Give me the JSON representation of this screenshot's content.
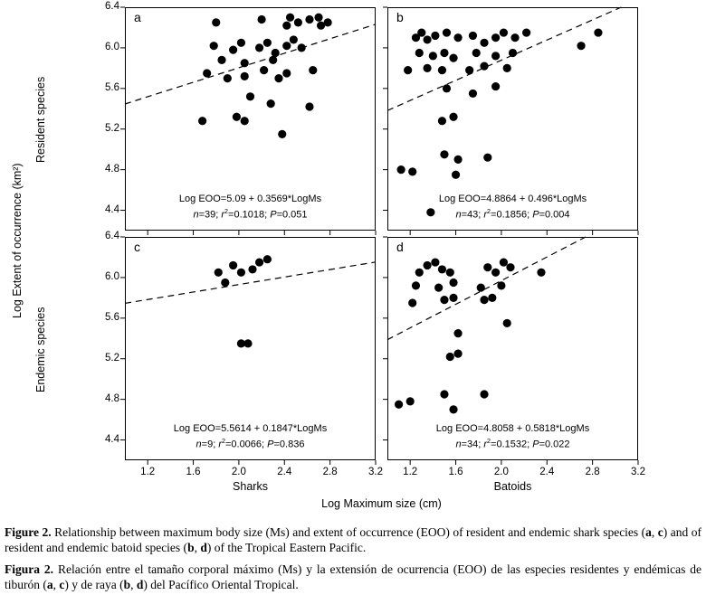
{
  "chart_data": {
    "type": "scatter",
    "xlabel": "Log Maximum size (cm)",
    "ylabel": "Log Extent of occurrence (km²)",
    "row_labels": [
      "Resident species",
      "Endemic species"
    ],
    "col_labels": [
      "Sharks",
      "Batoids"
    ],
    "xlim": [
      1.0,
      3.2
    ],
    "ylim": [
      4.2,
      6.4
    ],
    "x_ticks": [
      1.2,
      1.6,
      2.0,
      2.4,
      2.8,
      3.2
    ],
    "y_ticks": [
      4.4,
      4.8,
      5.2,
      5.6,
      6.0,
      6.4
    ],
    "grid": false,
    "legend": "none",
    "marker": "filled-circle",
    "line_style": "dashed",
    "colors": {
      "point": "#000000",
      "line": "#000000",
      "text": "#000000",
      "background": "#ffffff"
    },
    "stats_labels": {
      "n": "n",
      "r": "r",
      "r_sup": "2",
      "p": "P"
    },
    "panels": [
      {
        "id": "a",
        "row_label": "Resident species",
        "col_label": "Sharks",
        "equation": "Log EOO=5.09 + 0.3569*LogMs",
        "fit": {
          "intercept": 5.09,
          "slope": 0.3569
        },
        "n": "39",
        "r2": "0.1018",
        "P": "0.051",
        "points": [
          [
            1.8,
            6.25
          ],
          [
            2.2,
            6.28
          ],
          [
            2.42,
            6.22
          ],
          [
            2.45,
            6.3
          ],
          [
            2.52,
            6.25
          ],
          [
            2.62,
            6.28
          ],
          [
            2.7,
            6.3
          ],
          [
            2.72,
            6.22
          ],
          [
            2.78,
            6.25
          ],
          [
            1.78,
            6.02
          ],
          [
            1.95,
            5.98
          ],
          [
            2.02,
            6.05
          ],
          [
            2.18,
            6.0
          ],
          [
            2.25,
            6.05
          ],
          [
            2.32,
            5.95
          ],
          [
            2.42,
            6.02
          ],
          [
            2.48,
            6.08
          ],
          [
            2.55,
            6.0
          ],
          [
            1.85,
            5.88
          ],
          [
            2.05,
            5.85
          ],
          [
            2.3,
            5.88
          ],
          [
            1.72,
            5.75
          ],
          [
            1.9,
            5.7
          ],
          [
            2.05,
            5.72
          ],
          [
            2.22,
            5.78
          ],
          [
            2.35,
            5.7
          ],
          [
            2.42,
            5.75
          ],
          [
            2.65,
            5.78
          ],
          [
            2.1,
            5.52
          ],
          [
            2.28,
            5.45
          ],
          [
            2.62,
            5.42
          ],
          [
            1.68,
            5.28
          ],
          [
            1.98,
            5.32
          ],
          [
            2.05,
            5.28
          ],
          [
            2.38,
            5.15
          ]
        ]
      },
      {
        "id": "b",
        "row_label": "Resident species",
        "col_label": "Batoids",
        "equation": "Log EOO=4.8864 + 0.496*LogMs",
        "fit": {
          "intercept": 4.8864,
          "slope": 0.496
        },
        "n": "43",
        "r2": "0.1856",
        "P": "0.004",
        "points": [
          [
            1.25,
            6.1
          ],
          [
            1.3,
            6.15
          ],
          [
            1.35,
            6.08
          ],
          [
            1.42,
            6.12
          ],
          [
            1.52,
            6.15
          ],
          [
            1.62,
            6.1
          ],
          [
            1.75,
            6.12
          ],
          [
            1.85,
            6.05
          ],
          [
            1.95,
            6.1
          ],
          [
            2.02,
            6.15
          ],
          [
            2.12,
            6.1
          ],
          [
            2.22,
            6.15
          ],
          [
            2.85,
            6.15
          ],
          [
            1.28,
            5.95
          ],
          [
            1.4,
            5.92
          ],
          [
            1.5,
            5.95
          ],
          [
            1.58,
            5.9
          ],
          [
            1.78,
            5.95
          ],
          [
            1.95,
            5.92
          ],
          [
            2.1,
            5.95
          ],
          [
            2.7,
            6.02
          ],
          [
            1.18,
            5.78
          ],
          [
            1.35,
            5.8
          ],
          [
            1.48,
            5.78
          ],
          [
            1.72,
            5.78
          ],
          [
            1.85,
            5.82
          ],
          [
            2.05,
            5.8
          ],
          [
            1.52,
            5.6
          ],
          [
            1.75,
            5.55
          ],
          [
            1.95,
            5.62
          ],
          [
            1.48,
            5.28
          ],
          [
            1.58,
            5.32
          ],
          [
            1.5,
            4.95
          ],
          [
            1.62,
            4.9
          ],
          [
            1.88,
            4.92
          ],
          [
            1.12,
            4.8
          ],
          [
            1.22,
            4.78
          ],
          [
            1.6,
            4.75
          ],
          [
            1.38,
            4.38
          ]
        ]
      },
      {
        "id": "c",
        "row_label": "Endemic species",
        "col_label": "Sharks",
        "equation": "Log EOO=5.5614 + 0.1847*LogMs",
        "fit": {
          "intercept": 5.5614,
          "slope": 0.1847
        },
        "n": "9",
        "r2": "0.0066",
        "P": "0.836",
        "points": [
          [
            1.82,
            6.05
          ],
          [
            1.95,
            6.12
          ],
          [
            2.02,
            6.05
          ],
          [
            2.12,
            6.08
          ],
          [
            2.18,
            6.15
          ],
          [
            2.25,
            6.18
          ],
          [
            1.88,
            5.95
          ],
          [
            2.02,
            5.35
          ],
          [
            2.08,
            5.35
          ]
        ]
      },
      {
        "id": "d",
        "row_label": "Endemic species",
        "col_label": "Batoids",
        "equation": "Log EOO=4.8058 + 0.5818*LogMs",
        "fit": {
          "intercept": 4.8058,
          "slope": 0.5818
        },
        "n": "34",
        "r2": "0.1532",
        "P": "0.022",
        "points": [
          [
            1.28,
            6.05
          ],
          [
            1.35,
            6.12
          ],
          [
            1.42,
            6.15
          ],
          [
            1.48,
            6.08
          ],
          [
            1.55,
            6.05
          ],
          [
            1.88,
            6.1
          ],
          [
            1.95,
            6.05
          ],
          [
            2.02,
            6.15
          ],
          [
            2.08,
            6.1
          ],
          [
            2.35,
            6.05
          ],
          [
            1.25,
            5.92
          ],
          [
            1.45,
            5.9
          ],
          [
            1.58,
            5.95
          ],
          [
            1.82,
            5.9
          ],
          [
            2.0,
            5.92
          ],
          [
            1.22,
            5.75
          ],
          [
            1.5,
            5.78
          ],
          [
            1.58,
            5.8
          ],
          [
            1.85,
            5.78
          ],
          [
            1.92,
            5.8
          ],
          [
            1.62,
            5.45
          ],
          [
            2.05,
            5.55
          ],
          [
            1.55,
            5.22
          ],
          [
            1.62,
            5.25
          ],
          [
            1.5,
            4.85
          ],
          [
            1.85,
            4.85
          ],
          [
            1.1,
            4.75
          ],
          [
            1.2,
            4.78
          ],
          [
            1.58,
            4.7
          ]
        ]
      }
    ]
  },
  "caption": {
    "english": [
      {
        "b": "Figure 2."
      },
      {
        "t": " Relationship between maximum body size (Ms) and extent of occurrence (EOO) of resident and endemic shark species ("
      },
      {
        "b": "a"
      },
      {
        "t": ", "
      },
      {
        "b": "c"
      },
      {
        "t": ") and of resident and endemic batoid species ("
      },
      {
        "b": "b"
      },
      {
        "t": ", "
      },
      {
        "b": "d"
      },
      {
        "t": ") of the Tropical Eastern Pacific."
      }
    ],
    "spanish": [
      {
        "b": "Figura 2."
      },
      {
        "t": " Relación entre el tamaño corporal máximo (Ms) y la extensión de ocurrencia (EOO) de las especies residentes y endémicas de tiburón ("
      },
      {
        "b": "a"
      },
      {
        "t": ", "
      },
      {
        "b": "c"
      },
      {
        "t": ") y de raya ("
      },
      {
        "b": "b"
      },
      {
        "t": ", "
      },
      {
        "b": "d"
      },
      {
        "t": ") del Pacífico Oriental Tropical."
      }
    ]
  }
}
